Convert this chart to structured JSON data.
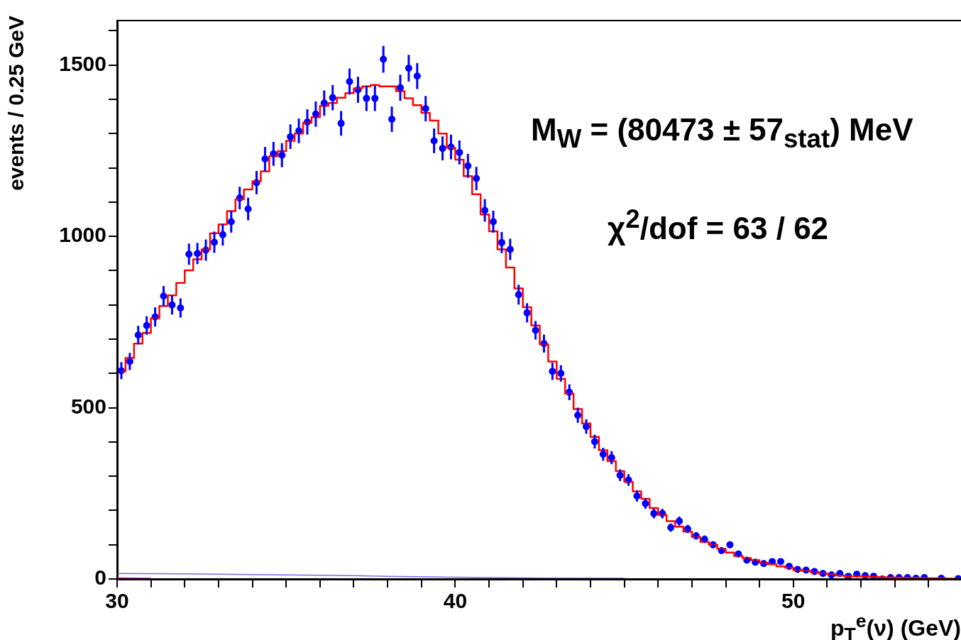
{
  "chart_data": {
    "type": "scatter",
    "xlabel": "p$_{T}$$^{e}$(ν) (GeV)",
    "ylabel": "events / 0.25 GeV",
    "annotations": [
      "M$_{W}$ = (80473 ± 57$_{stat}$) MeV",
      "χ$^{2}$/dof = 63 / 62"
    ],
    "x": [
      30.125,
      30.375,
      30.625,
      30.875,
      31.125,
      31.375,
      31.625,
      31.875,
      32.125,
      32.375,
      32.625,
      32.875,
      33.125,
      33.375,
      33.625,
      33.875,
      34.125,
      34.375,
      34.625,
      34.875,
      35.125,
      35.375,
      35.625,
      35.875,
      36.125,
      36.375,
      36.625,
      36.875,
      37.125,
      37.375,
      37.625,
      37.875,
      38.125,
      38.375,
      38.625,
      38.875,
      39.125,
      39.375,
      39.625,
      39.875,
      40.125,
      40.375,
      40.625,
      40.875,
      41.125,
      41.375,
      41.625,
      41.875,
      42.125,
      42.375,
      42.625,
      42.875,
      43.125,
      43.375,
      43.625,
      43.875,
      44.125,
      44.375,
      44.625,
      44.875,
      45.125,
      45.375,
      45.625,
      45.875,
      46.125,
      46.375,
      46.625,
      46.875,
      47.125,
      47.375,
      47.625,
      47.875,
      48.125,
      48.375,
      48.625,
      48.875,
      49.125,
      49.375,
      49.625,
      49.875,
      50.125,
      50.375,
      50.625,
      50.875,
      51.125,
      51.375,
      51.625,
      51.875,
      52.125,
      52.375,
      52.625,
      52.875,
      53.125,
      53.375,
      53.625,
      53.875,
      54.125,
      54.375,
      54.625,
      54.875
    ],
    "series": [
      {
        "type": "step",
        "color": "#ff0000",
        "values": [
          606,
          645,
          687,
          718,
          761,
          797,
          828,
          864,
          901,
          933,
          962,
          1009,
          1035,
          1074,
          1108,
          1137,
          1161,
          1190,
          1234,
          1249,
          1279,
          1300,
          1332,
          1348,
          1381,
          1389,
          1405,
          1418,
          1432,
          1438,
          1442,
          1438,
          1438,
          1424,
          1403,
          1383,
          1361,
          1338,
          1300,
          1259,
          1224,
          1176,
          1123,
          1064,
          1015,
          962,
          909,
          848,
          793,
          740,
          685,
          635,
          584,
          541,
          496,
          454,
          415,
          376,
          344,
          315,
          283,
          256,
          234,
          207,
          187,
          169,
          153,
          138,
          122,
          108,
          100,
          88,
          77,
          67,
          61,
          55,
          47,
          43,
          37,
          33,
          26,
          24,
          20,
          16,
          14,
          10,
          8,
          8,
          7,
          6,
          5,
          4,
          4,
          3,
          3,
          2,
          2,
          2,
          1,
          1
        ]
      },
      {
        "type": "line",
        "color": "#7b68ee",
        "x": [
          30,
          32,
          34,
          36,
          38,
          40,
          42,
          45
        ],
        "values": [
          16,
          15,
          13,
          11,
          8,
          5,
          3,
          2
        ]
      },
      {
        "type": "line",
        "color": "#ff00ff",
        "x": [
          30,
          31
        ],
        "values": [
          3,
          2
        ]
      },
      {
        "color": "#0000ff",
        "marker": "circle",
        "values": [
          608,
          635,
          712,
          740,
          765,
          826,
          800,
          791,
          948,
          950,
          960,
          983,
          1005,
          1043,
          1112,
          1080,
          1157,
          1226,
          1241,
          1237,
          1291,
          1308,
          1334,
          1357,
          1389,
          1405,
          1330,
          1452,
          1428,
          1403,
          1403,
          1517,
          1342,
          1434,
          1491,
          1468,
          1373,
          1279,
          1257,
          1261,
          1245,
          1206,
          1169,
          1076,
          1043,
          982,
          962,
          830,
          777,
          726,
          687,
          606,
          600,
          545,
          478,
          445,
          401,
          364,
          354,
          303,
          289,
          242,
          220,
          191,
          191,
          150,
          169,
          146,
          126,
          116,
          100,
          83,
          100,
          73,
          55,
          49,
          45,
          51,
          51,
          37,
          28,
          26,
          22,
          16,
          12,
          16,
          8,
          14,
          10,
          8,
          0,
          4,
          4,
          4,
          2,
          4,
          null,
          2,
          null,
          1
        ],
        "errors": [
          25,
          25,
          27,
          27,
          28,
          29,
          28,
          28,
          31,
          31,
          31,
          31,
          32,
          32,
          33,
          33,
          34,
          35,
          35,
          35,
          36,
          36,
          37,
          37,
          37,
          37,
          36,
          38,
          38,
          37,
          37,
          39,
          37,
          38,
          39,
          38,
          37,
          36,
          35,
          36,
          35,
          35,
          34,
          33,
          32,
          31,
          31,
          29,
          28,
          27,
          26,
          25,
          24,
          23,
          22,
          21,
          20,
          19,
          19,
          17,
          17,
          16,
          15,
          14,
          14,
          12,
          13,
          12,
          11,
          11,
          10,
          9,
          10,
          9,
          7,
          7,
          7,
          7,
          7,
          6,
          5,
          5,
          5,
          4,
          3,
          4,
          null,
          null,
          null,
          null,
          null,
          null,
          null,
          null,
          null,
          null,
          null,
          null,
          null,
          null
        ]
      }
    ],
    "marker": "none",
    "legend": false,
    "grid": false,
    "xlim": [
      30,
      55
    ],
    "ylim": [
      0,
      1630
    ],
    "xticks": [
      30,
      {
        "value": 31,
        "label": null
      },
      {
        "value": 32,
        "label": null
      },
      {
        "value": 33,
        "label": null
      },
      {
        "value": 34,
        "label": null
      },
      {
        "value": 35,
        "label": null
      },
      {
        "value": 36,
        "label": null
      },
      {
        "value": 37,
        "label": null
      },
      {
        "value": 38,
        "label": null
      },
      {
        "value": 39,
        "label": null
      },
      40,
      {
        "value": 41,
        "label": null
      },
      {
        "value": 42,
        "label": null
      },
      {
        "value": 43,
        "label": null
      },
      {
        "value": 44,
        "label": null
      },
      {
        "value": 45,
        "label": null
      },
      {
        "value": 46,
        "label": null
      },
      {
        "value": 47,
        "label": null
      },
      {
        "value": 48,
        "label": null
      },
      {
        "value": 49,
        "label": null
      },
      50,
      {
        "value": 51,
        "label": null
      },
      {
        "value": 52,
        "label": null
      },
      {
        "value": 53,
        "label": null
      },
      {
        "value": 54,
        "label": null
      }
    ],
    "yticks": [
      0,
      {
        "value": 100,
        "label": null
      },
      {
        "value": 200,
        "label": null
      },
      {
        "value": 300,
        "label": null
      },
      {
        "value": 400,
        "label": null
      },
      500,
      {
        "value": 600,
        "label": null
      },
      {
        "value": 700,
        "label": null
      },
      {
        "value": 800,
        "label": null
      },
      {
        "value": 900,
        "label": null
      },
      1000,
      {
        "value": 1100,
        "label": null
      },
      {
        "value": 1200,
        "label": null
      },
      {
        "value": 1300,
        "label": null
      },
      {
        "value": 1400,
        "label": null
      },
      1500,
      {
        "value": 1600,
        "label": null
      }
    ]
  }
}
